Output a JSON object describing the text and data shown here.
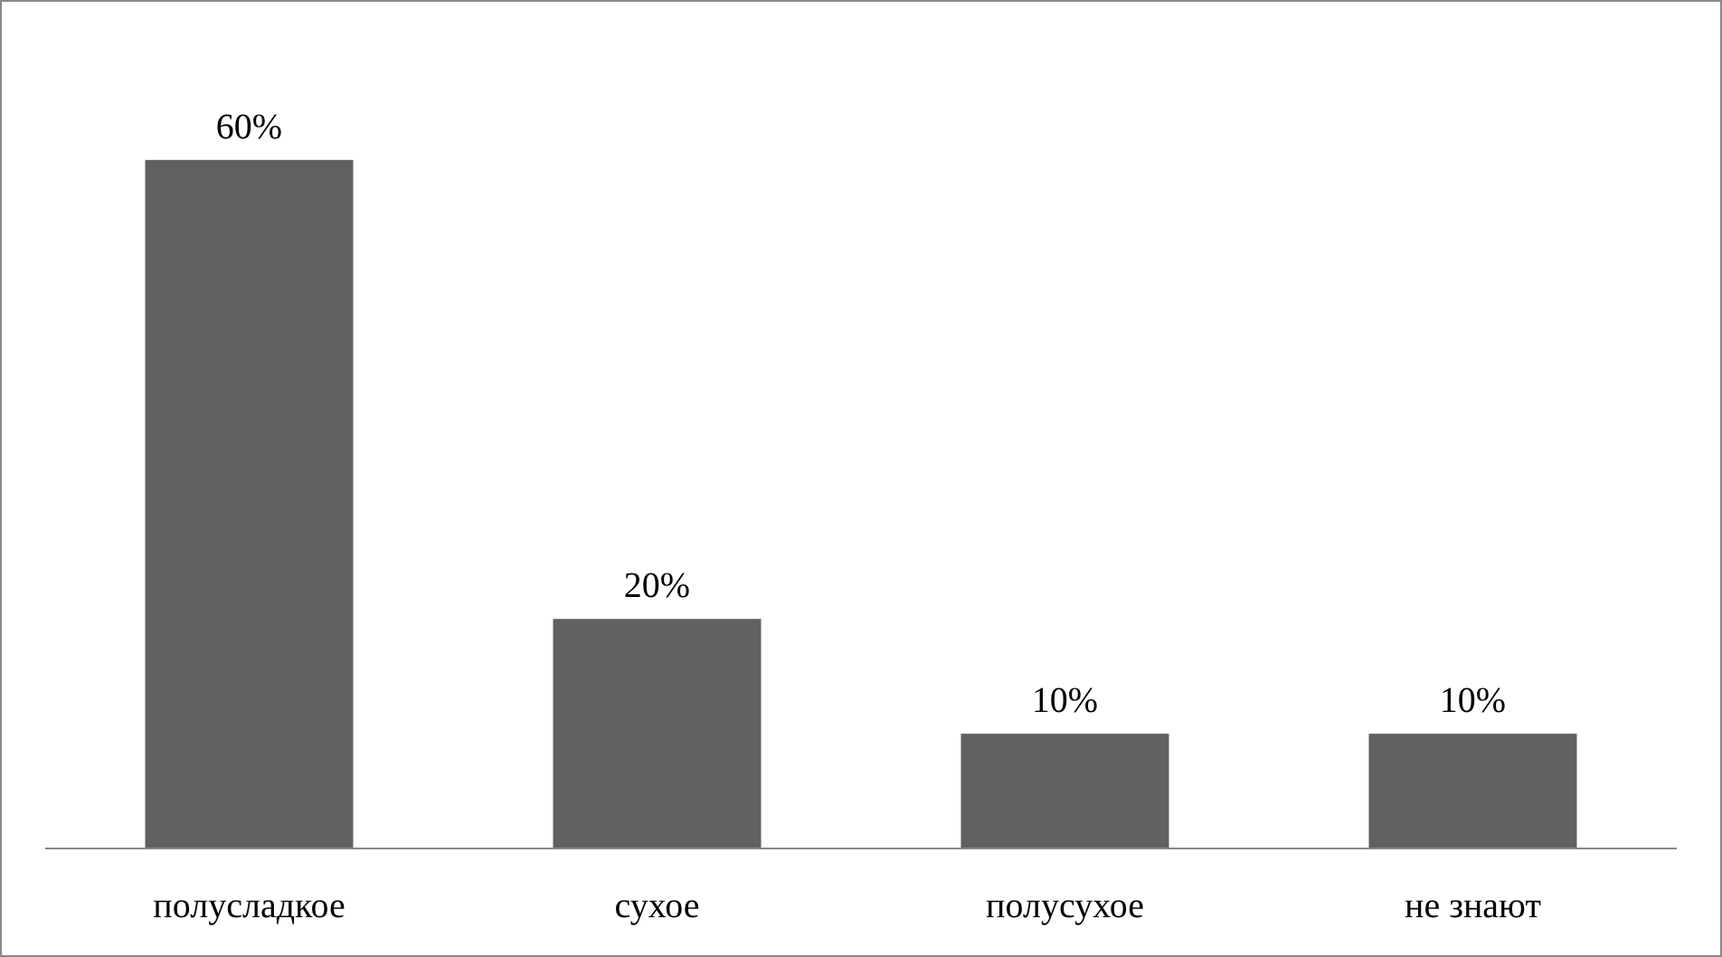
{
  "chart_data": {
    "type": "bar",
    "categories": [
      "полусладкое",
      "сухое",
      "полусухое",
      "не знают"
    ],
    "values": [
      60,
      20,
      10,
      10
    ],
    "color": "#606060",
    "value_labels": [
      "60%",
      "20%",
      "10%",
      "10%"
    ],
    "grid": false
  }
}
